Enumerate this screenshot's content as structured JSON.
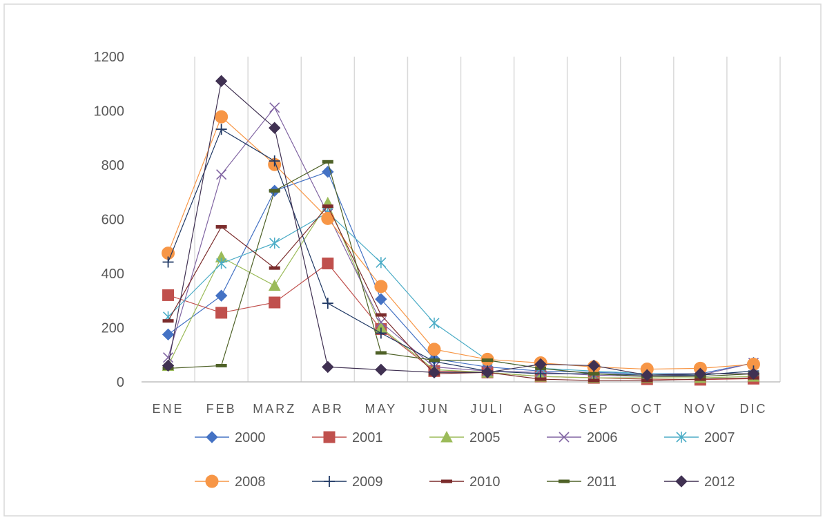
{
  "chart_data": {
    "type": "line",
    "title": "",
    "xlabel": "",
    "ylabel": "",
    "ylim": [
      0,
      1200
    ],
    "yticks": [
      0,
      200,
      400,
      600,
      800,
      1000,
      1200
    ],
    "grid": "vertical",
    "legend_position": "bottom",
    "categories": [
      "ENE",
      "FEB",
      "MARZ",
      "ABR",
      "MAY",
      "JUN",
      "JULI",
      "AGO",
      "SEP",
      "OCT",
      "NOV",
      "DIC"
    ],
    "series": [
      {
        "name": "2000",
        "color": "#4472c4",
        "marker": "diamond",
        "values": [
          175,
          318,
          705,
          775,
          305,
          85,
          55,
          40,
          35,
          30,
          30,
          70
        ]
      },
      {
        "name": "2001",
        "color": "#c0504d",
        "marker": "square",
        "values": [
          320,
          255,
          293,
          437,
          195,
          40,
          35,
          20,
          15,
          10,
          8,
          12
        ]
      },
      {
        "name": "2005",
        "color": "#9bbb59",
        "marker": "triangle",
        "values": [
          60,
          460,
          355,
          660,
          200,
          45,
          35,
          20,
          15,
          15,
          15,
          20
        ]
      },
      {
        "name": "2006",
        "color": "#8064a2",
        "marker": "x",
        "values": [
          90,
          765,
          1012,
          620,
          220,
          55,
          40,
          35,
          25,
          20,
          25,
          70
        ]
      },
      {
        "name": "2007",
        "color": "#4bacc6",
        "marker": "asterisk",
        "values": [
          240,
          437,
          512,
          625,
          440,
          217,
          80,
          50,
          40,
          30,
          25,
          40
        ]
      },
      {
        "name": "2008",
        "color": "#f79646",
        "marker": "circle",
        "values": [
          475,
          978,
          802,
          603,
          352,
          120,
          83,
          70,
          55,
          47,
          50,
          65
        ]
      },
      {
        "name": "2009",
        "color": "#1f3864",
        "marker": "plus",
        "values": [
          442,
          932,
          815,
          290,
          180,
          75,
          40,
          30,
          30,
          25,
          25,
          40
        ]
      },
      {
        "name": "2010",
        "color": "#7b2c2c",
        "marker": "dash",
        "values": [
          225,
          572,
          420,
          648,
          247,
          30,
          35,
          10,
          5,
          5,
          10,
          15
        ]
      },
      {
        "name": "2011",
        "color": "#4f6228",
        "marker": "dash",
        "values": [
          50,
          60,
          705,
          812,
          107,
          80,
          80,
          50,
          30,
          20,
          20,
          30
        ]
      },
      {
        "name": "2012",
        "color": "#403152",
        "marker": "diamond",
        "values": [
          60,
          1110,
          937,
          55,
          45,
          35,
          35,
          65,
          60,
          25,
          30,
          30
        ]
      }
    ]
  }
}
